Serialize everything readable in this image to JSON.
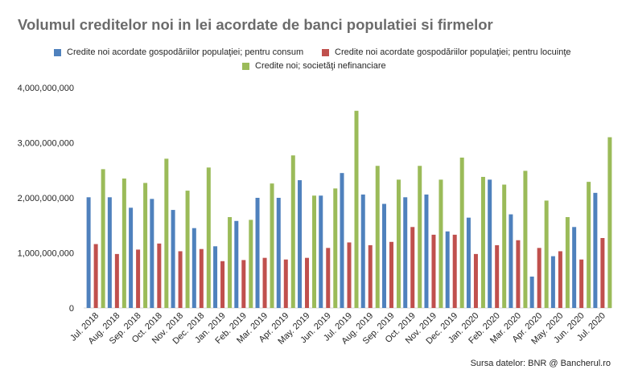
{
  "chart_data": {
    "type": "bar",
    "title": "Volumul creditelor noi in lei acordate de banci populatiei si firmelor",
    "source": "Sursa datelor: BNR @ Bancherul.ro",
    "ylim": [
      0,
      4000000000
    ],
    "y_ticks": [
      "0",
      "1,000,000,000",
      "2,000,000,000",
      "3,000,000,000",
      "4,000,000,000"
    ],
    "legend_position": "top",
    "grid": false,
    "categories": [
      "Jul. 2018",
      "Aug. 2018",
      "Sep. 2018",
      "Oct. 2018",
      "Nov. 2018",
      "Dec. 2018",
      "Jan. 2019",
      "Feb. 2019",
      "Mar. 2019",
      "Apr. 2019",
      "May. 2019",
      "Jun. 2019",
      "Jul. 2019",
      "Aug. 2019",
      "Sep. 2019",
      "Oct. 2019",
      "Nov. 2019",
      "Dec. 2019",
      "Jan. 2020",
      "Feb. 2020",
      "Mar. 2020",
      "Apr. 2020",
      "May. 2020",
      "Jun. 2020",
      "Jul. 2020"
    ],
    "series": [
      {
        "name": "Credite noi acordate gospodăriilor populaţiei; pentru consum",
        "color": "#4f81bd",
        "values": [
          2010000000,
          2010000000,
          1820000000,
          1980000000,
          1780000000,
          1450000000,
          1120000000,
          1580000000,
          2000000000,
          2000000000,
          2320000000,
          2040000000,
          2450000000,
          2060000000,
          1890000000,
          2010000000,
          2060000000,
          1390000000,
          1640000000,
          2330000000,
          1700000000,
          570000000,
          940000000,
          1470000000,
          2090000000
        ]
      },
      {
        "name": "Credite noi acordate gospodăriilor populaţiei; pentru locuinţe",
        "color": "#c0504d",
        "values": [
          1160000000,
          980000000,
          1060000000,
          1170000000,
          1030000000,
          1070000000,
          850000000,
          870000000,
          910000000,
          880000000,
          910000000,
          1090000000,
          1190000000,
          1140000000,
          1200000000,
          1470000000,
          1330000000,
          1330000000,
          980000000,
          1140000000,
          1230000000,
          1090000000,
          1030000000,
          880000000,
          1270000000
        ]
      },
      {
        "name": "Credite noi; societăţi nefinanciare",
        "color": "#9bbb59",
        "values": [
          2520000000,
          2350000000,
          2270000000,
          2710000000,
          2130000000,
          2550000000,
          1650000000,
          1600000000,
          2260000000,
          2770000000,
          2040000000,
          2170000000,
          3580000000,
          2580000000,
          2330000000,
          2580000000,
          2330000000,
          2730000000,
          2380000000,
          2240000000,
          2490000000,
          1950000000,
          1650000000,
          2290000000,
          3100000000
        ]
      }
    ]
  }
}
